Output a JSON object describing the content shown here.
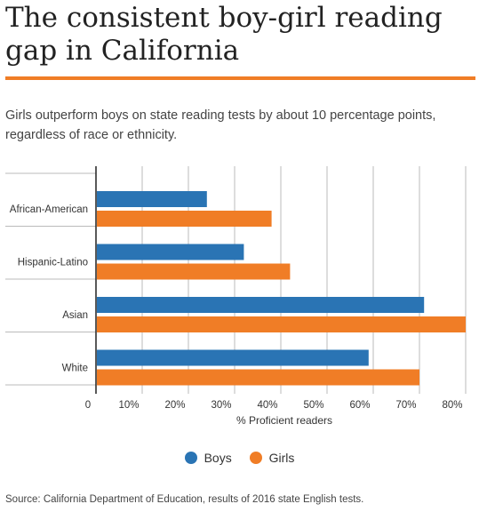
{
  "title": "The consistent boy-girl reading gap in California",
  "subtitle": "Girls outperform boys on state reading tests by about 10 percentage points, regardless of race or ethnicity.",
  "source": "Source: California Department of Education, results of 2016 state English tests.",
  "legend": {
    "boys": "Boys",
    "girls": "Girls"
  },
  "colors": {
    "boys": "#2a74b4",
    "girls": "#f07d26",
    "accent": "#f07d26",
    "grid": "#bbbbbb",
    "axis": "#222222"
  },
  "chart_data": {
    "type": "bar",
    "orientation": "horizontal",
    "categories": [
      "African-American",
      "Hispanic-Latino",
      "Asian",
      "White"
    ],
    "series": [
      {
        "name": "Boys",
        "values": [
          24,
          32,
          71,
          59
        ]
      },
      {
        "name": "Girls",
        "values": [
          38,
          42,
          80,
          70
        ]
      }
    ],
    "x_ticks": [
      "0",
      "10%",
      "20%",
      "30%",
      "40%",
      "50%",
      "60%",
      "70%",
      "80%"
    ],
    "xlabel": "% Proficient readers",
    "ylabel": "",
    "xlim": [
      0,
      80
    ],
    "grid": true,
    "legend_position": "bottom"
  }
}
